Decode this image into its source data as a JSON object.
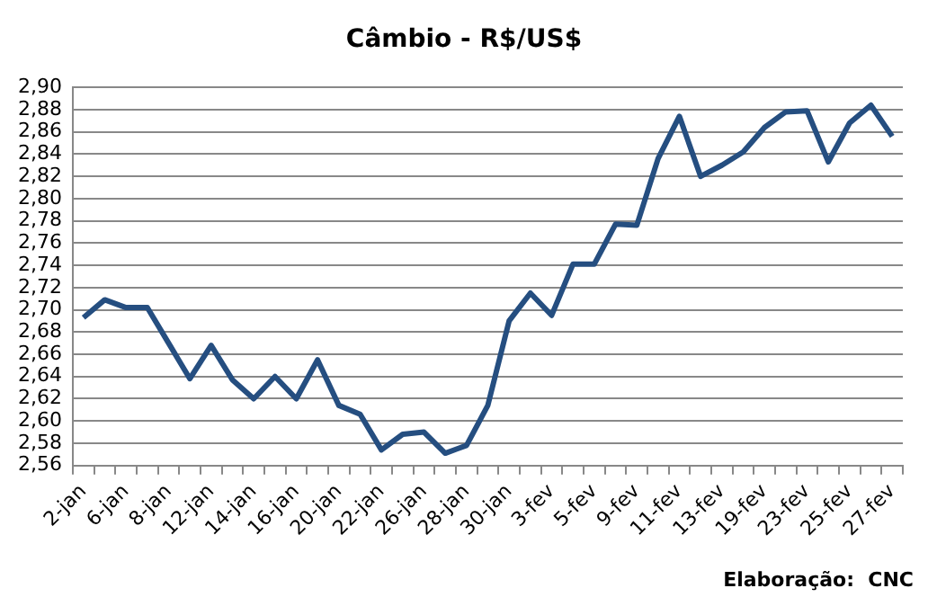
{
  "chart_data": {
    "type": "line",
    "title": "Câmbio - R$/US$",
    "categories": [
      "2-jan",
      null,
      "6-jan",
      null,
      "8-jan",
      null,
      "12-jan",
      null,
      "14-jan",
      null,
      "16-jan",
      null,
      "20-jan",
      null,
      "22-jan",
      null,
      "26-jan",
      null,
      "28-jan",
      null,
      "30-jan",
      null,
      "3-fev",
      null,
      "5-fev",
      null,
      "9-fev",
      null,
      "11-fev",
      null,
      "13-fev",
      null,
      "19-fev",
      null,
      "23-fev",
      null,
      "25-fev",
      null,
      "27-fev"
    ],
    "series": [
      {
        "color": "#254e80",
        "values": [
          2.693,
          2.709,
          2.702,
          2.702,
          2.67,
          2.638,
          2.668,
          2.637,
          2.62,
          2.64,
          2.62,
          2.655,
          2.614,
          2.606,
          2.574,
          2.588,
          2.59,
          2.571,
          2.578,
          2.614,
          2.69,
          2.715,
          2.695,
          2.741,
          2.741,
          2.777,
          2.776,
          2.836,
          2.874,
          2.82,
          2.83,
          2.842,
          2.864,
          2.878,
          2.879,
          2.833,
          2.868,
          2.884,
          2.856
        ]
      }
    ],
    "ylim": [
      2.56,
      2.9
    ],
    "yticks": [
      {
        "value": 2.56,
        "label": "2,56"
      },
      {
        "value": 2.58,
        "label": "2,58"
      },
      {
        "value": 2.6,
        "label": "2,60"
      },
      {
        "value": 2.62,
        "label": "2,62"
      },
      {
        "value": 2.64,
        "label": "2,64"
      },
      {
        "value": 2.66,
        "label": "2,66"
      },
      {
        "value": 2.68,
        "label": "2,68"
      },
      {
        "value": 2.7,
        "label": "2,70"
      },
      {
        "value": 2.72,
        "label": "2,72"
      },
      {
        "value": 2.74,
        "label": "2,74"
      },
      {
        "value": 2.76,
        "label": "2,76"
      },
      {
        "value": 2.78,
        "label": "2,78"
      },
      {
        "value": 2.8,
        "label": "2,80"
      },
      {
        "value": 2.82,
        "label": "2,82"
      },
      {
        "value": 2.84,
        "label": "2,84"
      },
      {
        "value": 2.86,
        "label": "2,86"
      },
      {
        "value": 2.88,
        "label": "2,88"
      },
      {
        "value": 2.9,
        "label": "2,90"
      }
    ],
    "grid": "y",
    "legend": false,
    "marker": "none",
    "line_style": "solid",
    "annotations": [
      "Elaboração:  CNC"
    ]
  }
}
